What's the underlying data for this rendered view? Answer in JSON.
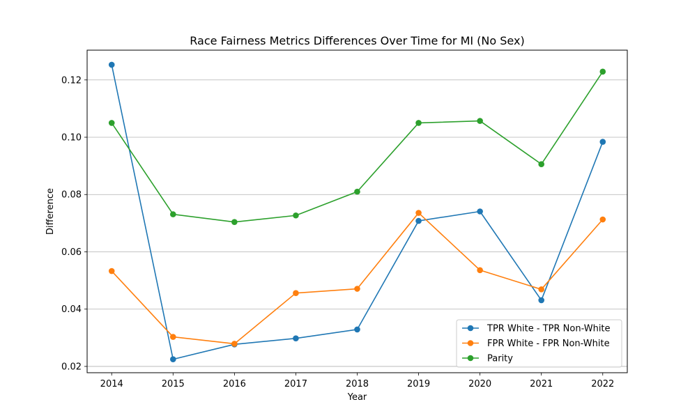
{
  "chart_data": {
    "type": "line",
    "title": "Race Fairness Metrics Differences Over Time for MI (No Sex)",
    "xlabel": "Year",
    "ylabel": "Difference",
    "x": [
      2014,
      2015,
      2016,
      2017,
      2018,
      2019,
      2020,
      2021,
      2022
    ],
    "xlim": [
      2013.6,
      2022.4
    ],
    "ylim": [
      0.0178,
      0.1304
    ],
    "yticks": [
      "0.02",
      "0.04",
      "0.06",
      "0.08",
      "0.10",
      "0.12"
    ],
    "grid": "y",
    "legend_position": "lower right",
    "series": [
      {
        "name": "TPR White - TPR Non-White",
        "color": "#1f77b4",
        "values": [
          0.1253,
          0.0225,
          0.0277,
          0.0298,
          0.0329,
          0.0708,
          0.0741,
          0.0431,
          0.0984
        ]
      },
      {
        "name": "FPR White - FPR Non-White",
        "color": "#ff7f0e",
        "values": [
          0.0533,
          0.0303,
          0.0279,
          0.0456,
          0.0471,
          0.0736,
          0.0536,
          0.0469,
          0.0713
        ]
      },
      {
        "name": "Parity",
        "color": "#2ca02c",
        "values": [
          0.105,
          0.0731,
          0.0704,
          0.0727,
          0.081,
          0.105,
          0.1057,
          0.0906,
          0.1229
        ]
      }
    ]
  }
}
